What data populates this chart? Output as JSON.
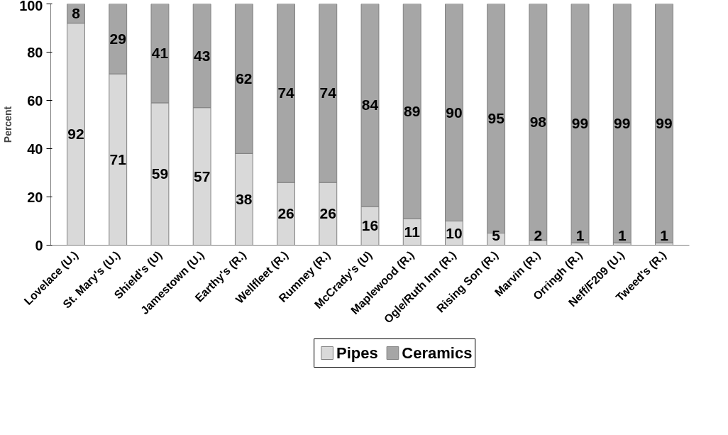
{
  "chart_data": {
    "type": "bar",
    "stacked": true,
    "ylabel": "Percent",
    "categories": [
      "Lovelace (U.)",
      "St. Mary's (U.)",
      "Shield's (U)",
      "Jamestown (U.)",
      "Earthy's (R.)",
      "Wellfleet (R.)",
      "Rumney (R.)",
      "McCrady's (U)",
      "Maplewood (R.)",
      "Ogle/Ruth Inn (R.)",
      "Rising Son (R.)",
      "Marvin (R.)",
      "Orringh (R.)",
      "Neff/F209 (U.)",
      "Tweed's (R.)"
    ],
    "series": [
      {
        "name": "Pipes",
        "color": "#d9d9d9",
        "values": [
          92,
          71,
          59,
          57,
          38,
          26,
          26,
          16,
          11,
          10,
          5,
          2,
          1,
          1,
          1
        ]
      },
      {
        "name": "Ceramics",
        "color": "#a6a6a6",
        "values": [
          8,
          29,
          41,
          43,
          62,
          74,
          74,
          84,
          89,
          90,
          95,
          98,
          99,
          99,
          99
        ]
      }
    ],
    "ylim": [
      0,
      100
    ],
    "yticks": [
      0,
      20,
      40,
      60,
      80,
      100
    ],
    "grid": false,
    "legend": "bottom",
    "data_labels": true
  }
}
